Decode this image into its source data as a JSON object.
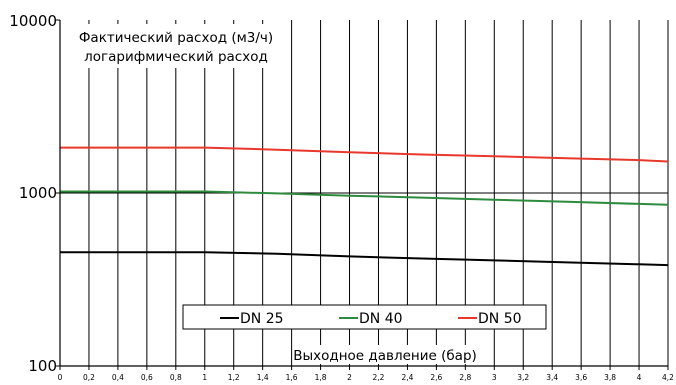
{
  "chart_data": {
    "type": "line",
    "title": "",
    "xlabel": "Выходное давление (бар)",
    "ylabel": "",
    "annotation_lines": [
      "Фактический расход (м3/ч)",
      "логарифмический расход"
    ],
    "y_scale": "log",
    "ylim": [
      100,
      10000
    ],
    "y_tick_values": [
      100,
      1000,
      10000
    ],
    "y_tick_labels": [
      "100",
      "1000",
      "10000"
    ],
    "xlim": [
      0,
      4.2
    ],
    "x_tick_values": [
      0,
      0.2,
      0.4,
      0.6,
      0.8,
      1,
      1.2,
      1.4,
      1.6,
      1.8,
      2,
      2.2,
      2.4,
      2.6,
      2.8,
      3,
      3.2,
      3.4,
      3.6,
      3.8,
      4,
      4.2
    ],
    "x_tick_labels": [
      "0",
      "0,2",
      "0,4",
      "0,6",
      "0,8",
      "1",
      "1,2",
      "1,4",
      "1,6",
      "1,8",
      "2",
      "2,2",
      "2,4",
      "2,6",
      "2,8",
      "3",
      "3,2",
      "3,4",
      "3,6",
      "3,8",
      "4",
      "4,2"
    ],
    "grid": "vertical",
    "legend_position": "bottom-center",
    "series": [
      {
        "name": "DN 25",
        "color": "#000000",
        "x": [
          0,
          1,
          1.5,
          2,
          2.5,
          3,
          3.5,
          4,
          4.2
        ],
        "y": [
          455,
          455,
          445,
          430,
          418,
          408,
          397,
          387,
          383
        ]
      },
      {
        "name": "DN 40",
        "color": "#2e8b3e",
        "x": [
          0,
          1,
          1.5,
          2,
          2.5,
          3,
          3.5,
          4,
          4.2
        ],
        "y": [
          1020,
          1020,
          995,
          965,
          940,
          915,
          890,
          865,
          855
        ]
      },
      {
        "name": "DN 50",
        "color": "#e8382b",
        "x": [
          0,
          1,
          1.5,
          2,
          2.5,
          3,
          3.5,
          4,
          4.2
        ],
        "y": [
          1830,
          1830,
          1780,
          1720,
          1670,
          1630,
          1590,
          1550,
          1520
        ]
      }
    ]
  }
}
